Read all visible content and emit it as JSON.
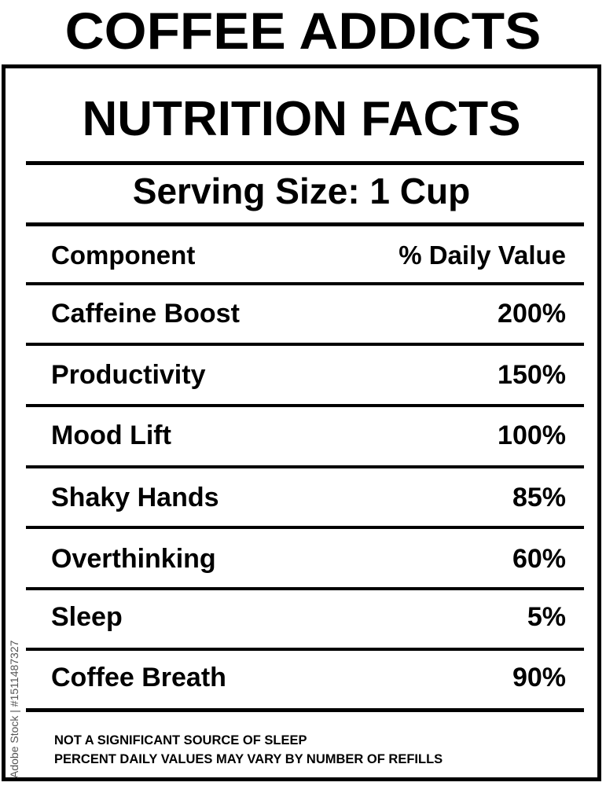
{
  "header_title": "COFFEE ADDICTS",
  "label": {
    "title": "NUTRITION FACTS",
    "serving_size": "Serving Size: 1 Cup",
    "columns": {
      "component": "Component",
      "daily_value": "% Daily Value"
    },
    "rows": [
      {
        "name": "Caffeine Boost",
        "value": "200%"
      },
      {
        "name": "Productivity",
        "value": "150%"
      },
      {
        "name": "Mood Lift",
        "value": "100%"
      },
      {
        "name": "Shaky Hands",
        "value": "85%"
      },
      {
        "name": "Overthinking",
        "value": "60%"
      },
      {
        "name": "Sleep",
        "value": "5%"
      },
      {
        "name": "Coffee Breath",
        "value": "90%"
      }
    ],
    "footnotes": [
      "NOT A SIGNIFICANT SOURCE OF SLEEP",
      "PERCENT DAILY VALUES MAY VARY BY NUMBER OF REFILLS"
    ]
  },
  "watermark": {
    "text": "Adobe Stock | #1511487327"
  },
  "colors": {
    "ink": "#000000",
    "background": "#ffffff"
  }
}
